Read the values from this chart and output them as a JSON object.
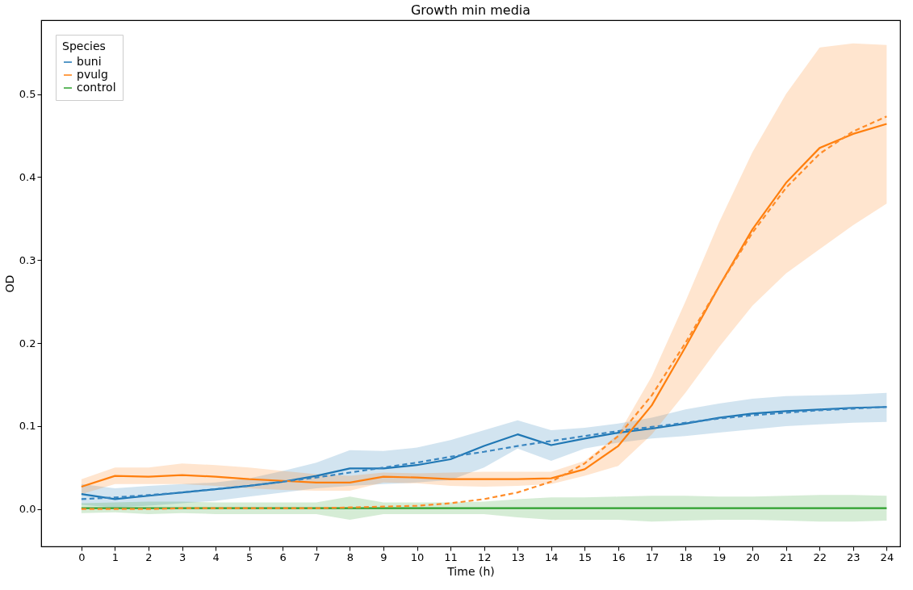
{
  "chart_data": {
    "type": "line",
    "title": "Growth min media",
    "xlabel": "Time (h)",
    "ylabel": "OD",
    "legend_title": "Species",
    "legend": "top left",
    "grid": false,
    "x": [
      0,
      1,
      2,
      3,
      4,
      5,
      6,
      7,
      8,
      9,
      10,
      11,
      12,
      13,
      14,
      15,
      16,
      17,
      18,
      19,
      20,
      21,
      22,
      23,
      24
    ],
    "xlim": [
      -1.2,
      24.4
    ],
    "ylim": [
      -0.045,
      0.589
    ],
    "xticks": [
      0,
      1,
      2,
      3,
      4,
      5,
      6,
      7,
      8,
      9,
      10,
      11,
      12,
      13,
      14,
      15,
      16,
      17,
      18,
      19,
      20,
      21,
      22,
      23,
      24
    ],
    "yticks": [
      {
        "value": 0,
        "label": "0.0"
      },
      0.1,
      0.2,
      0.3,
      0.4,
      0.5
    ],
    "series": [
      {
        "name": "buni",
        "color": "#1f77b4",
        "line_style": "solid",
        "values": [
          0.018,
          0.012,
          0.016,
          0.02,
          0.024,
          0.028,
          0.033,
          0.04,
          0.049,
          0.049,
          0.053,
          0.06,
          0.076,
          0.09,
          0.077,
          0.085,
          0.092,
          0.097,
          0.103,
          0.11,
          0.115,
          0.118,
          0.12,
          0.122,
          0.123
        ],
        "lower": [
          0.005,
          0.002,
          0.004,
          0.007,
          0.01,
          0.015,
          0.02,
          0.025,
          0.028,
          0.03,
          0.032,
          0.035,
          0.05,
          0.073,
          0.058,
          0.073,
          0.08,
          0.085,
          0.088,
          0.092,
          0.096,
          0.1,
          0.102,
          0.104,
          0.105
        ],
        "upper": [
          0.03,
          0.025,
          0.028,
          0.03,
          0.032,
          0.037,
          0.046,
          0.056,
          0.071,
          0.07,
          0.074,
          0.083,
          0.095,
          0.107,
          0.095,
          0.098,
          0.103,
          0.11,
          0.12,
          0.127,
          0.133,
          0.136,
          0.137,
          0.138,
          0.14
        ]
      },
      {
        "name": "pvulg",
        "color": "#ff7f0e",
        "line_style": "solid",
        "values": [
          0.027,
          0.04,
          0.039,
          0.041,
          0.039,
          0.036,
          0.034,
          0.032,
          0.032,
          0.039,
          0.038,
          0.036,
          0.036,
          0.036,
          0.037,
          0.048,
          0.076,
          0.125,
          0.195,
          0.268,
          0.337,
          0.393,
          0.435,
          0.452,
          0.464
        ],
        "lower": [
          0.018,
          0.03,
          0.03,
          0.03,
          0.028,
          0.025,
          0.023,
          0.022,
          0.022,
          0.032,
          0.031,
          0.028,
          0.027,
          0.028,
          0.03,
          0.04,
          0.052,
          0.09,
          0.14,
          0.195,
          0.245,
          0.284,
          0.313,
          0.342,
          0.368
        ],
        "upper": [
          0.036,
          0.05,
          0.05,
          0.055,
          0.053,
          0.05,
          0.046,
          0.042,
          0.04,
          0.044,
          0.043,
          0.044,
          0.045,
          0.045,
          0.045,
          0.058,
          0.09,
          0.16,
          0.25,
          0.345,
          0.43,
          0.5,
          0.556,
          0.561,
          0.559
        ]
      },
      {
        "name": "control",
        "color": "#2ca02c",
        "line_style": "solid",
        "values": [
          0.001,
          0.001,
          0.001,
          0.001,
          0.001,
          0.001,
          0.001,
          0.001,
          0.001,
          0.001,
          0.001,
          0.001,
          0.001,
          0.001,
          0.001,
          0.001,
          0.001,
          0.001,
          0.001,
          0.001,
          0.001,
          0.001,
          0.001,
          0.001,
          0.001
        ],
        "lower": [
          -0.005,
          -0.004,
          -0.006,
          -0.005,
          -0.006,
          -0.006,
          -0.006,
          -0.006,
          -0.013,
          -0.006,
          -0.006,
          -0.006,
          -0.006,
          -0.01,
          -0.013,
          -0.013,
          -0.013,
          -0.015,
          -0.014,
          -0.013,
          -0.013,
          -0.014,
          -0.015,
          -0.015,
          -0.014
        ],
        "upper": [
          0.007,
          0.008,
          0.009,
          0.009,
          0.008,
          0.008,
          0.008,
          0.008,
          0.015,
          0.008,
          0.008,
          0.008,
          0.009,
          0.012,
          0.014,
          0.014,
          0.015,
          0.016,
          0.016,
          0.015,
          0.015,
          0.016,
          0.017,
          0.017,
          0.016
        ]
      },
      {
        "type": "line",
        "color": "#3a86c0",
        "line_style": "dashed",
        "values": [
          0.012,
          0.014,
          0.017,
          0.02,
          0.024,
          0.028,
          0.033,
          0.038,
          0.044,
          0.05,
          0.056,
          0.063,
          0.069,
          0.076,
          0.082,
          0.088,
          0.094,
          0.099,
          0.104,
          0.109,
          0.113,
          0.116,
          0.119,
          0.121,
          0.123
        ]
      },
      {
        "type": "line",
        "color": "#ff8c28",
        "line_style": "dashed",
        "values": [
          0.0,
          0.0,
          0.0,
          0.001,
          0.001,
          0.001,
          0.001,
          0.001,
          0.002,
          0.003,
          0.004,
          0.007,
          0.012,
          0.02,
          0.033,
          0.055,
          0.088,
          0.137,
          0.2,
          0.268,
          0.333,
          0.387,
          0.428,
          0.455,
          0.473
        ]
      }
    ]
  }
}
